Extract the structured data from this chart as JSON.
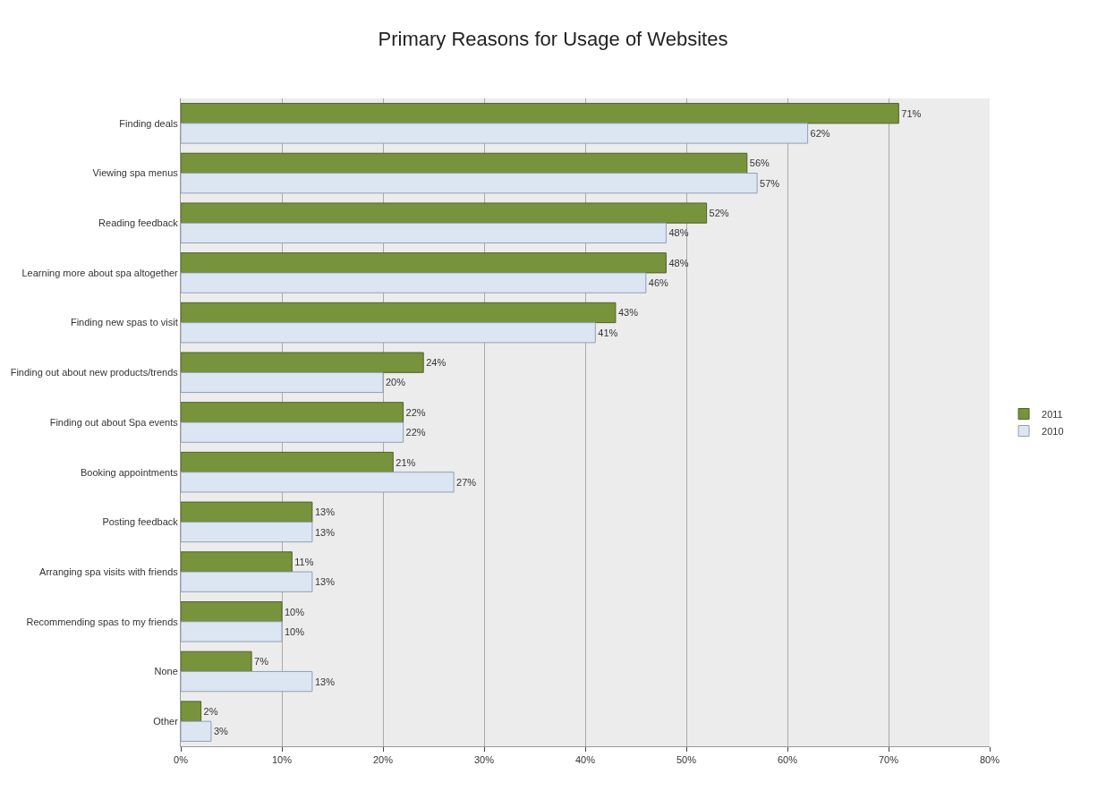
{
  "chart_data": {
    "type": "bar",
    "orientation": "horizontal",
    "title": "Primary Reasons for Usage of Websites",
    "categories": [
      "Finding deals",
      "Viewing spa menus",
      "Reading feedback",
      "Learning more about spa altogether",
      "Finding new spas to visit",
      "Finding out about new products/trends",
      "Finding out about Spa events",
      "Booking appointments",
      "Posting feedback",
      "Arranging spa visits with friends",
      "Recommending spas to my friends",
      "None",
      "Other"
    ],
    "series": [
      {
        "name": "2011",
        "color": "#77933c",
        "values": [
          71,
          56,
          52,
          48,
          43,
          24,
          22,
          21,
          13,
          11,
          10,
          7,
          2
        ],
        "value_labels": [
          "71%",
          "56%",
          "52%",
          "48%",
          "43%",
          "24%",
          "22%",
          "21%",
          "13%",
          "11%",
          "10%",
          "7%",
          "2%"
        ]
      },
      {
        "name": "2010",
        "color": "#dce6f2",
        "values": [
          62,
          57,
          48,
          46,
          41,
          20,
          22,
          27,
          13,
          13,
          10,
          13,
          3
        ],
        "value_labels": [
          "62%",
          "57%",
          "48%",
          "46%",
          "41%",
          "20%",
          "22%",
          "27%",
          "13%",
          "13%",
          "10%",
          "13%",
          "3%"
        ]
      }
    ],
    "xlim": [
      0,
      80
    ],
    "xticks": [
      {
        "value": 0,
        "label": "0%"
      },
      {
        "value": 10,
        "label": "10%"
      },
      {
        "value": 20,
        "label": "20%"
      },
      {
        "value": 30,
        "label": "30%"
      },
      {
        "value": 40,
        "label": "40%"
      },
      {
        "value": 50,
        "label": "50%"
      },
      {
        "value": 60,
        "label": "60%"
      },
      {
        "value": 70,
        "label": "70%"
      },
      {
        "value": 80,
        "label": "80%"
      }
    ],
    "grid": "x",
    "legend": "right"
  }
}
